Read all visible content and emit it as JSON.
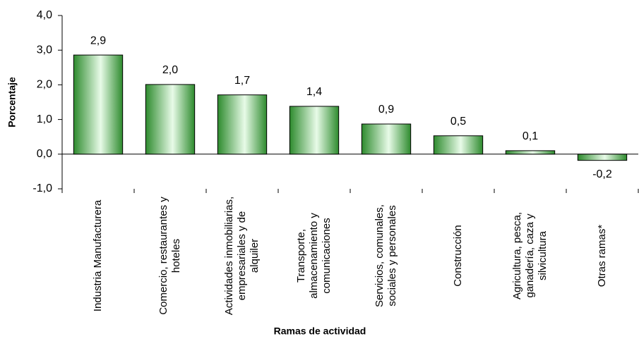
{
  "chart_data": {
    "type": "bar",
    "y_label": "Porcentaje",
    "x_label": "Ramas de actividad",
    "categories": [
      "Industria Manufacturera",
      "Comercio, restaurantes y hoteles",
      "Actividades inmobiliarias, empresariales y de alquiler",
      "Transporte, almacenamiento y comunicaciones",
      "Servicios, comunales, sociales y personales",
      "Construcción",
      "Agricultura, pesca, ganadería, caza y silvicultura",
      "Otras ramas*"
    ],
    "values": [
      2.86,
      2.01,
      1.71,
      1.38,
      0.87,
      0.53,
      0.1,
      -0.18
    ],
    "value_labels": [
      "2,9",
      "2,0",
      "1,7",
      "1,4",
      "0,9",
      "0,5",
      "0,1",
      "-0,2"
    ],
    "color": "#2e8b2e",
    "ylim": [
      -1,
      4
    ],
    "yticks": [
      {
        "value": -1,
        "label": "-1,0"
      },
      {
        "value": 0,
        "label": "0,0"
      },
      {
        "value": 1,
        "label": "1,0"
      },
      {
        "value": 2,
        "label": "2,0"
      },
      {
        "value": 3,
        "label": "3,0"
      },
      {
        "value": 4,
        "label": "4,0"
      }
    ]
  }
}
